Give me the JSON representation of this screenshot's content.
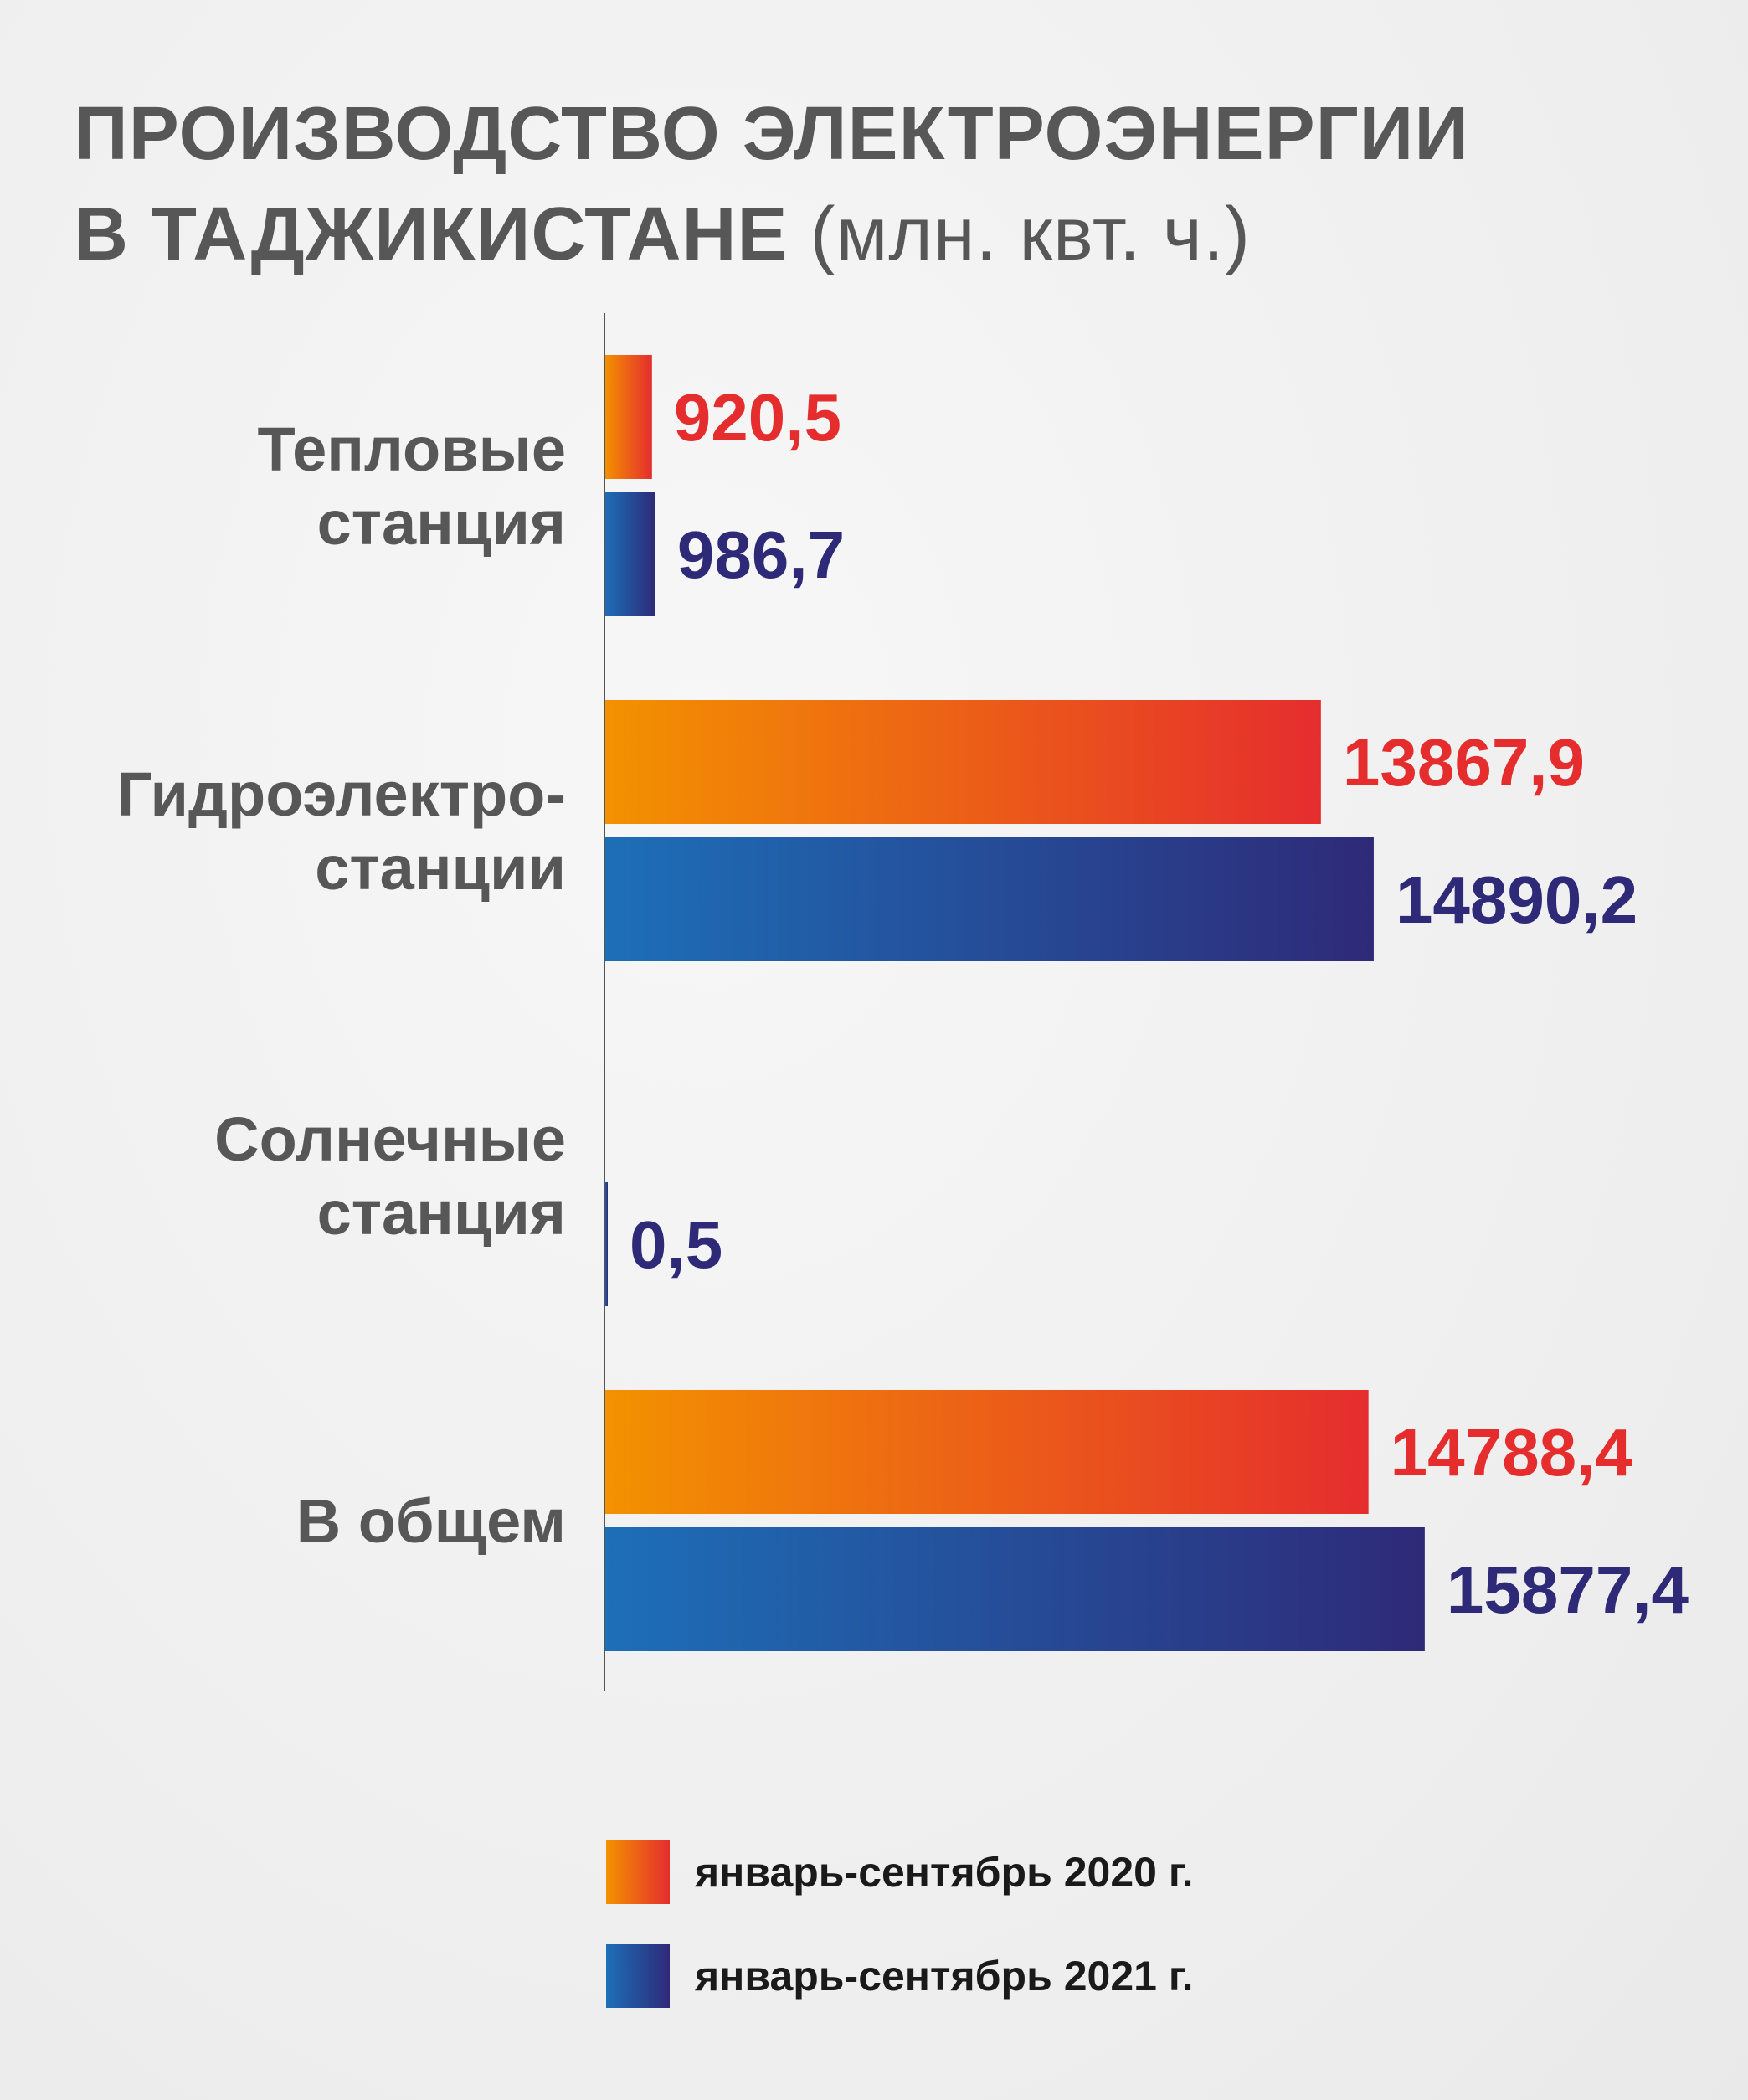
{
  "title": {
    "line1": "ПРОИЗВОДСТВО ЭЛЕКТРОЭНЕРГИИ",
    "line2": "В ТАДЖИКИСТАНЕ",
    "unit": "(млн. квт. ч.)"
  },
  "colors": {
    "series2020_start": "#f39200",
    "series2020_end": "#e52d2e",
    "series2020_text": "#e52d2e",
    "series2021_start": "#1d6fb8",
    "series2021_end": "#2e2a78",
    "series2021_text": "#2e2a78",
    "axis": "#555555"
  },
  "chart_data": {
    "type": "bar",
    "orientation": "horizontal",
    "title": "ПРОИЗВОДСТВО ЭЛЕКТРОЭНЕРГИИ В ТАДЖИКИСТАНЕ (млн. квт. ч.)",
    "xlim": [
      0,
      17500
    ],
    "grid": false,
    "legend_position": "bottom",
    "categories": [
      [
        "Тепловые",
        "станция"
      ],
      [
        "Гидроэлектро-",
        "станции"
      ],
      [
        "Солнечные",
        "станция"
      ],
      [
        "В общем"
      ]
    ],
    "series": [
      {
        "name": "январь-сентябрь 2020 г.",
        "values": [
          920.5,
          13867.9,
          null,
          14788.4
        ],
        "labels": [
          "920,5",
          "13867,9",
          "",
          "14788,4"
        ]
      },
      {
        "name": "январь-сентябрь 2021 г.",
        "values": [
          986.7,
          14890.2,
          0.5,
          15877.4
        ],
        "labels": [
          "986,7",
          "14890,2",
          "0,5",
          "15877,4"
        ]
      }
    ]
  }
}
